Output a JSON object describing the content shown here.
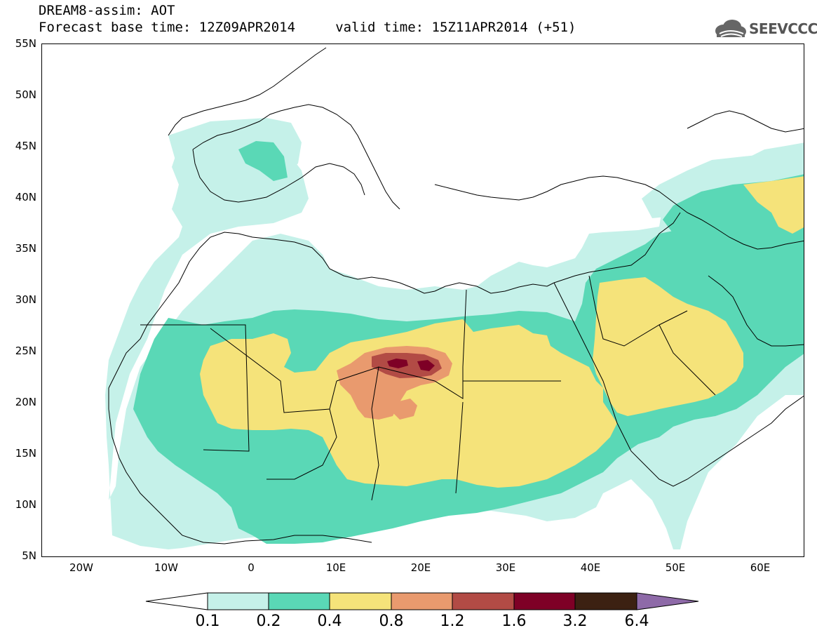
{
  "title": {
    "line1": "DREAM8-assim: AOT",
    "line2": "Forecast base time: 12Z09APR2014     valid time: 15Z11APR2014 (+51)"
  },
  "logo": {
    "text": "SEEVCCC",
    "icon": "cloud-logo-icon"
  },
  "axes": {
    "lat_labels": [
      "55N",
      "50N",
      "45N",
      "40N",
      "35N",
      "30N",
      "25N",
      "20N",
      "15N",
      "10N",
      "5N"
    ],
    "lat_values": [
      55,
      50,
      45,
      40,
      35,
      30,
      25,
      20,
      15,
      10,
      5
    ],
    "lon_labels": [
      "20W",
      "10W",
      "0",
      "10E",
      "20E",
      "30E",
      "40E",
      "50E",
      "60E"
    ],
    "lon_values": [
      -20,
      -10,
      0,
      10,
      20,
      30,
      40,
      50,
      60
    ],
    "lon_range": [
      -25,
      65
    ],
    "lat_range": [
      5,
      55
    ]
  },
  "colorbar": {
    "labels": [
      "0.1",
      "0.2",
      "0.4",
      "0.8",
      "1.2",
      "1.6",
      "3.2",
      "6.4"
    ],
    "colors": [
      "#ffffff",
      "#c5f1e9",
      "#5ad8b6",
      "#f5e37a",
      "#e99a6e",
      "#b24b45",
      "#7e0026",
      "#3c2112",
      "#8e6aa8"
    ]
  },
  "levels_colors": {
    "l1": "#c5f1e9",
    "l2": "#5ad8b6",
    "l3": "#f5e37a",
    "l4": "#e99a6e",
    "l5": "#b24b45",
    "l6": "#7e0026"
  }
}
